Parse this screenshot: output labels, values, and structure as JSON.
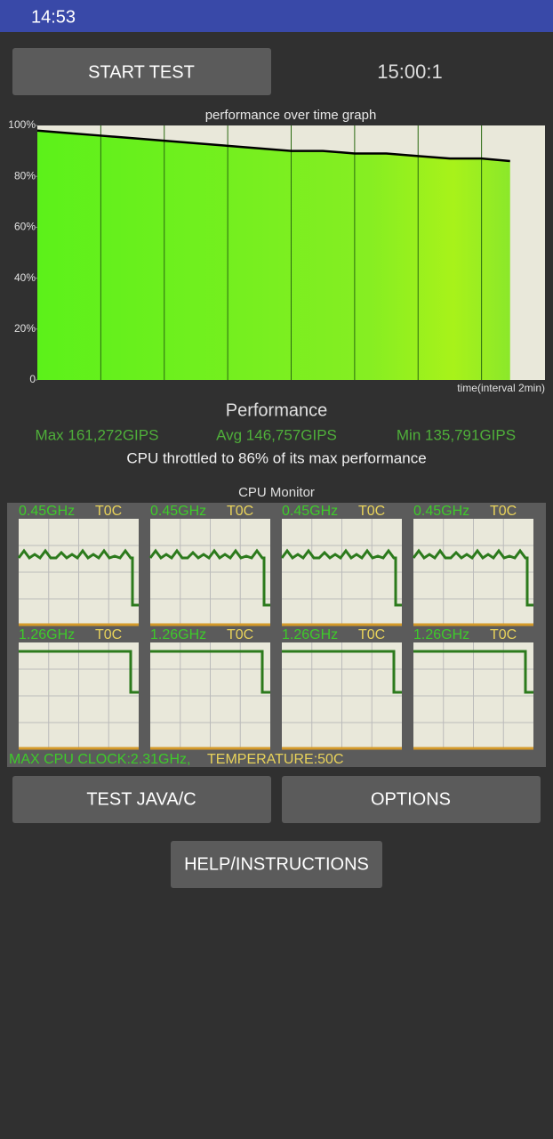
{
  "status_bar": {
    "time": "14:53"
  },
  "start_button": "START TEST",
  "timer": "15:00:1",
  "chart_data": {
    "type": "line",
    "title": "performance over time graph",
    "x_label": "time(interval 2min)",
    "x": [
      0,
      1,
      2,
      3,
      4,
      5,
      6,
      7,
      8,
      9,
      10,
      11,
      12,
      13,
      14,
      14.9
    ],
    "values": [
      98,
      97,
      96,
      95,
      94,
      93,
      92,
      91,
      90,
      90,
      89,
      89,
      88,
      87,
      87,
      86
    ],
    "color": "#000000",
    "xlim": [
      0,
      16
    ],
    "xticks": [
      2,
      4,
      6,
      8,
      10,
      12,
      14
    ],
    "ylim": [
      0,
      100
    ],
    "yticks": [
      0,
      {
        "value": 20,
        "label": "20%"
      },
      {
        "value": 40,
        "label": "40%"
      },
      {
        "value": 60,
        "label": "60%"
      },
      {
        "value": 80,
        "label": "80%"
      },
      {
        "value": 100,
        "label": "100%"
      }
    ]
  },
  "performance": {
    "heading": "Performance",
    "max": "Max 161,272GIPS",
    "avg": "Avg 146,757GIPS",
    "min": "Min 135,791GIPS",
    "throttle": "CPU throttled to 86% of its max performance"
  },
  "cpu_monitor": {
    "title": "CPU Monitor",
    "cores": [
      {
        "frequency": "0.45GHz",
        "temperature": "T0C"
      },
      {
        "frequency": "0.45GHz",
        "temperature": "T0C"
      },
      {
        "frequency": "0.45GHz",
        "temperature": "T0C"
      },
      {
        "frequency": "0.45GHz",
        "temperature": "T0C"
      },
      {
        "frequency": "1.26GHz",
        "temperature": "T0C"
      },
      {
        "frequency": "1.26GHz",
        "temperature": "T0C"
      },
      {
        "frequency": "1.26GHz",
        "temperature": "T0C"
      },
      {
        "frequency": "1.26GHz",
        "temperature": "T0C"
      }
    ],
    "max_clock": "MAX CPU CLOCK:2.31GHz,",
    "temperature": "TEMPERATURE:50C"
  },
  "buttons": {
    "test": "TEST JAVA/C",
    "options": "OPTIONS",
    "help": "HELP/INSTRUCTIONS"
  }
}
